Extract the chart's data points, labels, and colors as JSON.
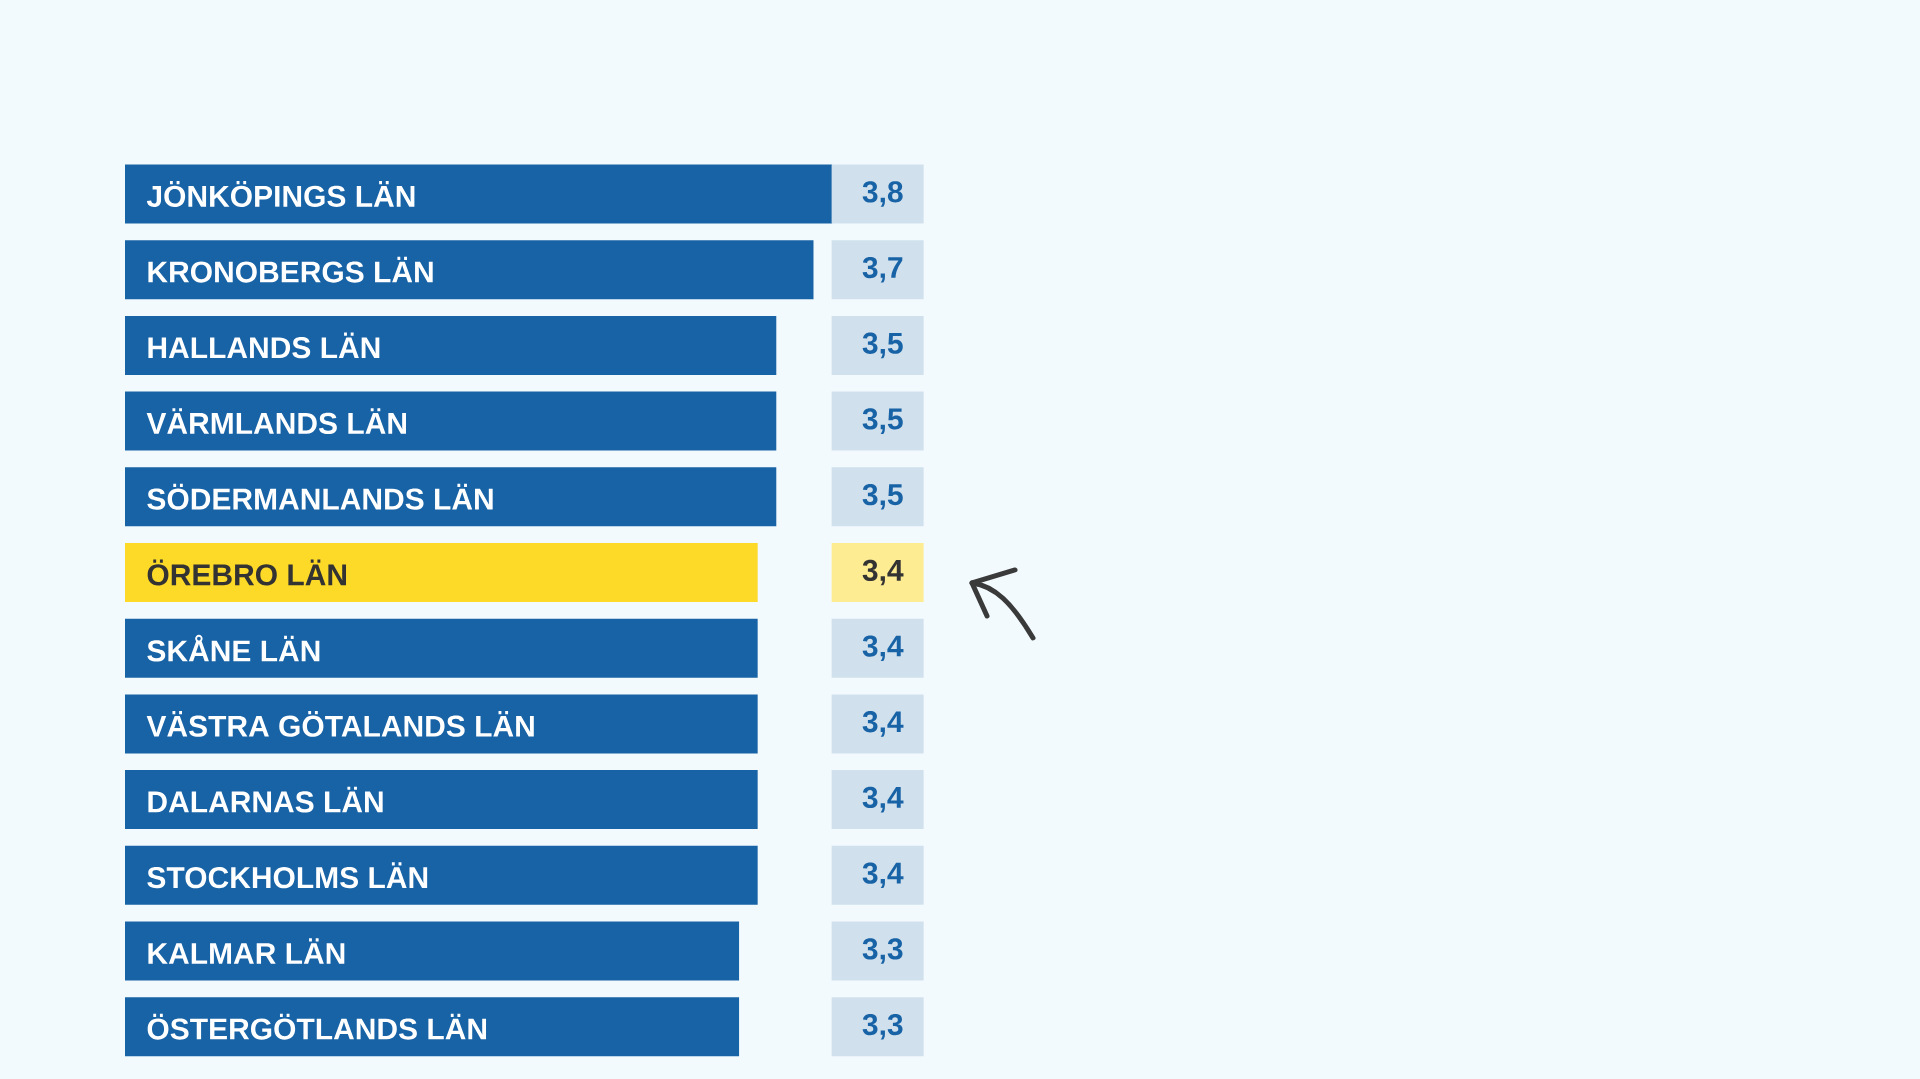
{
  "chart_data": {
    "type": "bar",
    "orientation": "horizontal",
    "categories": [
      "JÖNKÖPINGS LÄN",
      "KRONOBERGS LÄN",
      "HALLANDS LÄN",
      "VÄRMLANDS LÄN",
      "SÖDERMANLANDS LÄN",
      "ÖREBRO LÄN",
      "SKÅNE LÄN",
      "VÄSTRA GÖTALANDS LÄN",
      "DALARNAS LÄN",
      "STOCKHOLMS LÄN",
      "KALMAR LÄN",
      "ÖSTERGÖTLANDS LÄN"
    ],
    "values": [
      3.8,
      3.7,
      3.5,
      3.5,
      3.5,
      3.4,
      3.4,
      3.4,
      3.4,
      3.4,
      3.3,
      3.3
    ],
    "value_labels": [
      "3,8",
      "3,7",
      "3,5",
      "3,5",
      "3,5",
      "3,4",
      "3,4",
      "3,4",
      "3,4",
      "3,4",
      "3,3",
      "3,3"
    ],
    "colors": [
      "#1863a6",
      "#1863a6",
      "#1863a6",
      "#1863a6",
      "#1863a6",
      "#fdd928",
      "#1863a6",
      "#1863a6",
      "#1863a6",
      "#1863a6",
      "#1863a6",
      "#1863a6"
    ]
  }
}
